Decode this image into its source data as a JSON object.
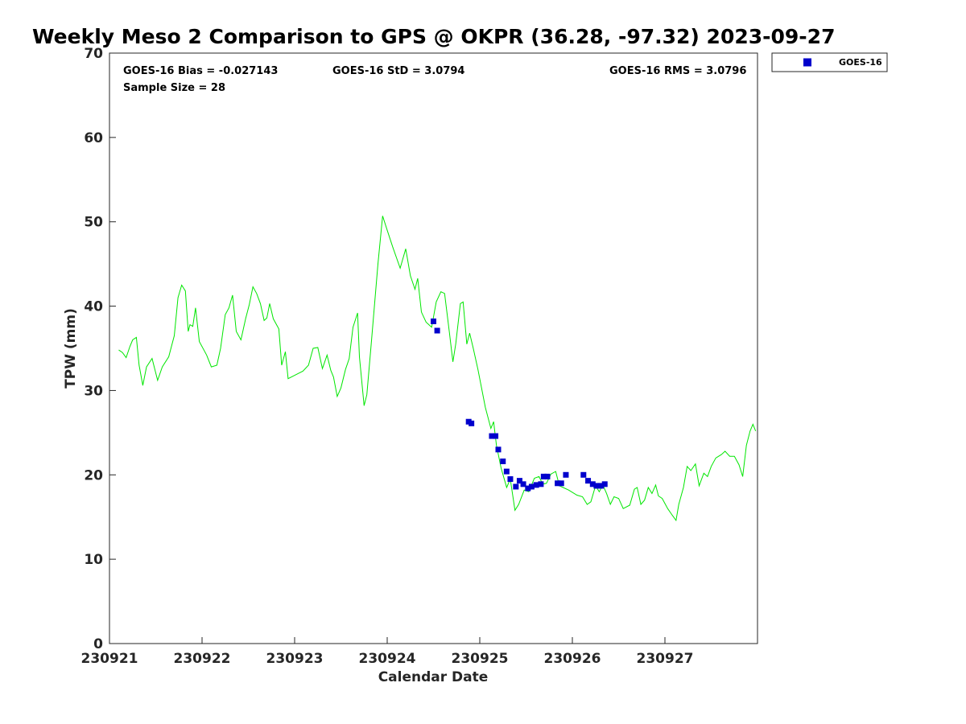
{
  "chart_data": {
    "type": "scatter",
    "title": "Weekly Meso 2 Comparison to GPS @ OKPR (36.28, -97.32) 2023-09-27",
    "xlabel": "Calendar Date",
    "ylabel": "TPW (mm)",
    "x_unit": "days",
    "xlim": [
      230921,
      230928
    ],
    "x_ticks": [
      {
        "value": 230921,
        "label": "230921"
      },
      {
        "value": 230922,
        "label": "230922"
      },
      {
        "value": 230923,
        "label": "230923"
      },
      {
        "value": 230924,
        "label": "230924"
      },
      {
        "value": 230925,
        "label": "230925"
      },
      {
        "value": 230926,
        "label": "230926"
      },
      {
        "value": 230927,
        "label": "230927"
      }
    ],
    "ylim": [
      0,
      70
    ],
    "y_ticks": [
      0,
      10,
      20,
      30,
      40,
      50,
      60,
      70
    ],
    "grid": false,
    "legend_position": "outside top-right",
    "stats": {
      "bias": "GOES-16 Bias = -0.027143",
      "std": "GOES-16 StD = 3.0794",
      "rms": "GOES-16 RMS = 3.0796",
      "sample": "Sample Size = 28"
    },
    "colors": {
      "line": "#00e600",
      "points": "#0000cc"
    },
    "series": [
      {
        "name": "GOES-16",
        "kind": "scatter",
        "color": "#0000cc",
        "points": [
          [
            230924.5,
            38.2
          ],
          [
            230924.54,
            37.1
          ],
          [
            230924.88,
            26.3
          ],
          [
            230924.91,
            26.1
          ],
          [
            230925.13,
            24.6
          ],
          [
            230925.17,
            24.6
          ],
          [
            230925.2,
            23.0
          ],
          [
            230925.25,
            21.6
          ],
          [
            230925.29,
            20.4
          ],
          [
            230925.33,
            19.5
          ],
          [
            230925.39,
            18.6
          ],
          [
            230925.43,
            19.3
          ],
          [
            230925.47,
            18.9
          ],
          [
            230925.52,
            18.4
          ],
          [
            230925.56,
            18.6
          ],
          [
            230925.61,
            18.8
          ],
          [
            230925.66,
            18.9
          ],
          [
            230925.69,
            19.8
          ],
          [
            230925.73,
            19.8
          ],
          [
            230925.84,
            19.0
          ],
          [
            230925.88,
            19.0
          ],
          [
            230925.93,
            20.0
          ],
          [
            230926.12,
            20.0
          ],
          [
            230926.17,
            19.3
          ],
          [
            230926.22,
            18.9
          ],
          [
            230926.26,
            18.7
          ],
          [
            230926.31,
            18.7
          ],
          [
            230926.35,
            18.9
          ]
        ]
      },
      {
        "kind": "line",
        "color": "#00e600",
        "points": [
          [
            230921.1,
            34.8
          ],
          [
            230921.14,
            34.5
          ],
          [
            230921.18,
            33.9
          ],
          [
            230921.22,
            35.2
          ],
          [
            230921.25,
            36.0
          ],
          [
            230921.29,
            36.3
          ],
          [
            230921.32,
            33.0
          ],
          [
            230921.36,
            30.6
          ],
          [
            230921.4,
            32.8
          ],
          [
            230921.46,
            33.8
          ],
          [
            230921.52,
            31.2
          ],
          [
            230921.57,
            32.8
          ],
          [
            230921.64,
            34.0
          ],
          [
            230921.7,
            36.5
          ],
          [
            230921.74,
            41.0
          ],
          [
            230921.78,
            42.5
          ],
          [
            230921.82,
            41.8
          ],
          [
            230921.85,
            37.0
          ],
          [
            230921.87,
            37.8
          ],
          [
            230921.9,
            37.6
          ],
          [
            230921.93,
            39.8
          ],
          [
            230921.97,
            35.8
          ],
          [
            230922.05,
            34.2
          ],
          [
            230922.1,
            32.8
          ],
          [
            230922.16,
            33.0
          ],
          [
            230922.2,
            35.0
          ],
          [
            230922.25,
            39.0
          ],
          [
            230922.29,
            39.8
          ],
          [
            230922.33,
            41.3
          ],
          [
            230922.37,
            37.0
          ],
          [
            230922.42,
            36.0
          ],
          [
            230922.47,
            38.5
          ],
          [
            230922.51,
            40.2
          ],
          [
            230922.55,
            42.3
          ],
          [
            230922.59,
            41.5
          ],
          [
            230922.63,
            40.3
          ],
          [
            230922.67,
            38.3
          ],
          [
            230922.7,
            38.6
          ],
          [
            230922.73,
            40.3
          ],
          [
            230922.77,
            38.5
          ],
          [
            230922.83,
            37.3
          ],
          [
            230922.86,
            33.0
          ],
          [
            230922.9,
            34.6
          ],
          [
            230922.93,
            31.4
          ],
          [
            230923.0,
            31.8
          ],
          [
            230923.09,
            32.3
          ],
          [
            230923.15,
            33.0
          ],
          [
            230923.2,
            35.0
          ],
          [
            230923.25,
            35.1
          ],
          [
            230923.3,
            32.6
          ],
          [
            230923.35,
            34.2
          ],
          [
            230923.39,
            32.4
          ],
          [
            230923.42,
            31.6
          ],
          [
            230923.46,
            29.3
          ],
          [
            230923.5,
            30.3
          ],
          [
            230923.55,
            32.5
          ],
          [
            230923.59,
            33.8
          ],
          [
            230923.63,
            37.5
          ],
          [
            230923.68,
            39.2
          ],
          [
            230923.7,
            34.0
          ],
          [
            230923.75,
            28.2
          ],
          [
            230923.78,
            29.5
          ],
          [
            230923.83,
            35.8
          ],
          [
            230923.9,
            45.0
          ],
          [
            230923.95,
            50.7
          ],
          [
            230924.0,
            49.0
          ],
          [
            230924.06,
            47.0
          ],
          [
            230924.14,
            44.5
          ],
          [
            230924.2,
            46.8
          ],
          [
            230924.25,
            43.6
          ],
          [
            230924.3,
            42.0
          ],
          [
            230924.33,
            43.3
          ],
          [
            230924.37,
            39.3
          ],
          [
            230924.42,
            38.1
          ],
          [
            230924.48,
            37.5
          ],
          [
            230924.53,
            40.5
          ],
          [
            230924.58,
            41.7
          ],
          [
            230924.62,
            41.5
          ],
          [
            230924.67,
            37.0
          ],
          [
            230924.71,
            33.4
          ],
          [
            230924.74,
            35.5
          ],
          [
            230924.79,
            40.3
          ],
          [
            230924.82,
            40.5
          ],
          [
            230924.86,
            35.5
          ],
          [
            230924.89,
            36.8
          ],
          [
            230924.93,
            35.0
          ],
          [
            230924.98,
            32.5
          ],
          [
            230925.06,
            28.0
          ],
          [
            230925.12,
            25.5
          ],
          [
            230925.15,
            26.3
          ],
          [
            230925.18,
            23.5
          ],
          [
            230925.23,
            20.8
          ],
          [
            230925.29,
            18.5
          ],
          [
            230925.33,
            19.5
          ],
          [
            230925.38,
            15.8
          ],
          [
            230925.42,
            16.5
          ],
          [
            230925.48,
            18.2
          ],
          [
            230925.53,
            18.0
          ],
          [
            230925.59,
            19.6
          ],
          [
            230925.64,
            19.8
          ],
          [
            230925.68,
            18.9
          ],
          [
            230925.72,
            19.0
          ],
          [
            230925.77,
            20.1
          ],
          [
            230925.82,
            20.4
          ],
          [
            230925.86,
            18.7
          ],
          [
            230925.9,
            18.5
          ],
          [
            230925.96,
            18.2
          ],
          [
            230926.05,
            17.6
          ],
          [
            230926.11,
            17.4
          ],
          [
            230926.16,
            16.5
          ],
          [
            230926.2,
            16.8
          ],
          [
            230926.25,
            18.7
          ],
          [
            230926.29,
            18.0
          ],
          [
            230926.33,
            18.8
          ],
          [
            230926.37,
            17.8
          ],
          [
            230926.41,
            16.5
          ],
          [
            230926.45,
            17.4
          ],
          [
            230926.5,
            17.2
          ],
          [
            230926.55,
            16.0
          ],
          [
            230926.62,
            16.4
          ],
          [
            230926.67,
            18.3
          ],
          [
            230926.7,
            18.5
          ],
          [
            230926.74,
            16.5
          ],
          [
            230926.78,
            17.0
          ],
          [
            230926.82,
            18.5
          ],
          [
            230926.86,
            17.8
          ],
          [
            230926.9,
            18.8
          ],
          [
            230926.93,
            17.5
          ],
          [
            230926.97,
            17.2
          ],
          [
            230927.03,
            16.0
          ],
          [
            230927.08,
            15.2
          ],
          [
            230927.12,
            14.6
          ],
          [
            230927.15,
            16.5
          ],
          [
            230927.2,
            18.5
          ],
          [
            230927.24,
            21.0
          ],
          [
            230927.28,
            20.5
          ],
          [
            230927.33,
            21.3
          ],
          [
            230927.37,
            18.7
          ],
          [
            230927.42,
            20.2
          ],
          [
            230927.46,
            19.8
          ],
          [
            230927.5,
            21.0
          ],
          [
            230927.55,
            22.0
          ],
          [
            230927.61,
            22.4
          ],
          [
            230927.65,
            22.8
          ],
          [
            230927.7,
            22.2
          ],
          [
            230927.75,
            22.2
          ],
          [
            230927.8,
            21.2
          ],
          [
            230927.84,
            19.8
          ],
          [
            230927.88,
            23.5
          ],
          [
            230927.92,
            25.2
          ],
          [
            230927.95,
            26.0
          ],
          [
            230927.98,
            25.2
          ]
        ]
      }
    ]
  }
}
